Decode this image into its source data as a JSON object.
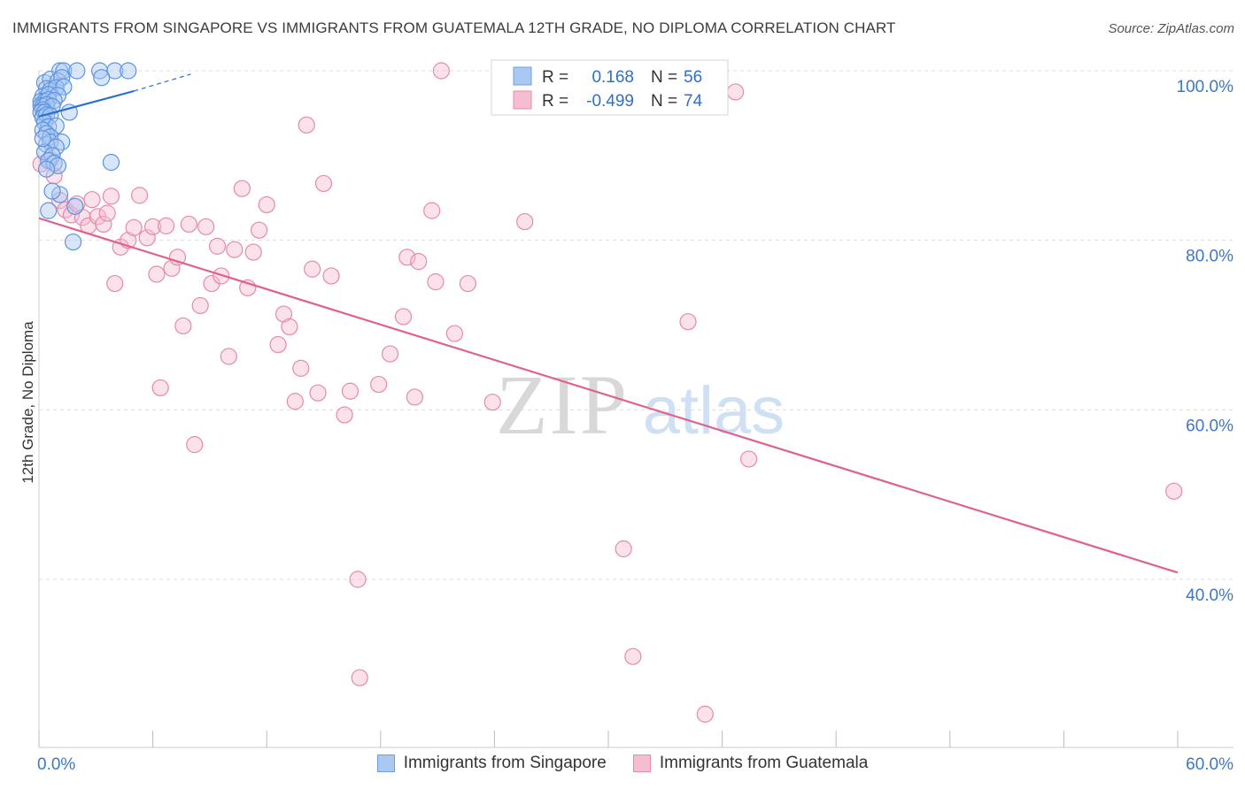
{
  "header": {
    "title": "IMMIGRANTS FROM SINGAPORE VS IMMIGRANTS FROM GUATEMALA 12TH GRADE, NO DIPLOMA CORRELATION CHART",
    "source": "Source: ZipAtlas.com"
  },
  "watermark": {
    "zip": "ZIP",
    "atlas": "atlas"
  },
  "legend_box": {
    "r_label": "R =",
    "n_label": "N =",
    "rows": [
      {
        "r": "0.168",
        "n": "56"
      },
      {
        "r": "-0.499",
        "n": "74"
      }
    ]
  },
  "colors": {
    "blue": "#2a6fd1",
    "blue_fill": "#aac8f2",
    "pink": "#e0608e",
    "pink_fill": "#f6bdd0",
    "tick_text": "#3a78c8",
    "grid": "#dddddd"
  },
  "chart_data": {
    "type": "scatter",
    "title": "IMMIGRANTS FROM SINGAPORE VS IMMIGRANTS FROM GUATEMALA 12TH GRADE, NO DIPLOMA CORRELATION CHART",
    "xlabel": "",
    "ylabel": "12th Grade, No Diploma",
    "xlim": [
      0,
      60
    ],
    "ylim": [
      22,
      101
    ],
    "x_tick_labels": [
      {
        "value": 0,
        "label": "0.0%"
      },
      {
        "value": 60,
        "label": "60.0%"
      }
    ],
    "x_minor_ticks": [
      0,
      6,
      12,
      18,
      24,
      30,
      36,
      42,
      48,
      54,
      60
    ],
    "y_tick_labels": [
      {
        "value": 100,
        "label": "100.0%"
      },
      {
        "value": 80,
        "label": "80.0%"
      },
      {
        "value": 60,
        "label": "60.0%"
      },
      {
        "value": 40,
        "label": "40.0%"
      }
    ],
    "grid": true,
    "series": [
      {
        "name": "Immigrants from Singapore",
        "color": "blue",
        "trend": {
          "x": [
            0,
            5
          ],
          "y": [
            94.6,
            97.6
          ]
        },
        "trend_dashed": {
          "x": [
            5,
            8
          ],
          "y": [
            97.6,
            99.6
          ]
        },
        "points": [
          [
            1.1,
            100
          ],
          [
            1.3,
            100
          ],
          [
            2.0,
            100
          ],
          [
            3.2,
            100
          ],
          [
            4.0,
            100
          ],
          [
            4.7,
            100
          ],
          [
            0.3,
            98.6
          ],
          [
            0.6,
            99.0
          ],
          [
            1.0,
            98.8
          ],
          [
            1.2,
            99.2
          ],
          [
            3.3,
            99.2
          ],
          [
            0.4,
            97.9
          ],
          [
            0.6,
            97.7
          ],
          [
            0.9,
            98.0
          ],
          [
            1.3,
            98.1
          ],
          [
            0.2,
            97.0
          ],
          [
            0.5,
            97.2
          ],
          [
            1.0,
            97.1
          ],
          [
            0.1,
            96.4
          ],
          [
            0.3,
            96.4
          ],
          [
            0.5,
            96.6
          ],
          [
            0.8,
            96.5
          ],
          [
            0.1,
            95.9
          ],
          [
            0.2,
            95.8
          ],
          [
            0.4,
            96.0
          ],
          [
            0.7,
            95.8
          ],
          [
            0.2,
            95.4
          ],
          [
            0.1,
            95.1
          ],
          [
            0.3,
            95.1
          ],
          [
            1.6,
            95.1
          ],
          [
            0.2,
            94.5
          ],
          [
            0.4,
            94.8
          ],
          [
            0.6,
            94.7
          ],
          [
            0.3,
            93.9
          ],
          [
            0.5,
            93.4
          ],
          [
            0.9,
            93.5
          ],
          [
            0.2,
            93.0
          ],
          [
            0.4,
            92.6
          ],
          [
            0.6,
            92.2
          ],
          [
            0.4,
            91.3
          ],
          [
            0.6,
            91.6
          ],
          [
            1.2,
            91.6
          ],
          [
            0.9,
            91.0
          ],
          [
            0.3,
            90.4
          ],
          [
            0.7,
            90.0
          ],
          [
            0.5,
            89.4
          ],
          [
            0.8,
            89.1
          ],
          [
            1.0,
            88.8
          ],
          [
            3.8,
            89.2
          ],
          [
            0.4,
            88.4
          ],
          [
            1.1,
            85.4
          ],
          [
            0.7,
            85.8
          ],
          [
            1.9,
            84.0
          ],
          [
            0.5,
            83.5
          ],
          [
            1.8,
            79.8
          ],
          [
            0.2,
            92.0
          ]
        ]
      },
      {
        "name": "Immigrants from Guatemala",
        "color": "pink",
        "trend": {
          "x": [
            0,
            60
          ],
          "y": [
            82.6,
            40.8
          ]
        },
        "points": [
          [
            0.1,
            89.0
          ],
          [
            0.6,
            89.5
          ],
          [
            0.8,
            87.6
          ],
          [
            1.1,
            84.7
          ],
          [
            1.4,
            83.6
          ],
          [
            1.7,
            83.0
          ],
          [
            2.0,
            84.3
          ],
          [
            2.3,
            82.7
          ],
          [
            2.6,
            81.7
          ],
          [
            2.8,
            84.8
          ],
          [
            3.1,
            82.8
          ],
          [
            3.4,
            81.9
          ],
          [
            3.6,
            83.2
          ],
          [
            3.8,
            85.2
          ],
          [
            4.0,
            74.9
          ],
          [
            4.3,
            79.2
          ],
          [
            4.7,
            80.0
          ],
          [
            5.0,
            81.5
          ],
          [
            5.3,
            85.3
          ],
          [
            5.7,
            80.3
          ],
          [
            6.0,
            81.6
          ],
          [
            6.2,
            76.0
          ],
          [
            6.4,
            62.6
          ],
          [
            6.7,
            81.7
          ],
          [
            7.0,
            76.7
          ],
          [
            7.3,
            78.0
          ],
          [
            7.6,
            69.9
          ],
          [
            7.9,
            81.9
          ],
          [
            8.2,
            55.9
          ],
          [
            8.5,
            72.3
          ],
          [
            8.8,
            81.6
          ],
          [
            9.1,
            74.9
          ],
          [
            9.4,
            79.3
          ],
          [
            9.6,
            75.8
          ],
          [
            10.0,
            66.3
          ],
          [
            10.3,
            78.9
          ],
          [
            10.7,
            86.1
          ],
          [
            11.0,
            74.4
          ],
          [
            11.3,
            78.6
          ],
          [
            11.6,
            81.2
          ],
          [
            12.0,
            84.2
          ],
          [
            12.6,
            67.7
          ],
          [
            12.9,
            71.3
          ],
          [
            13.2,
            69.8
          ],
          [
            13.5,
            61.0
          ],
          [
            13.8,
            64.9
          ],
          [
            14.1,
            93.6
          ],
          [
            14.4,
            76.6
          ],
          [
            14.7,
            62.0
          ],
          [
            15.0,
            86.7
          ],
          [
            15.4,
            75.8
          ],
          [
            16.1,
            59.4
          ],
          [
            16.4,
            62.2
          ],
          [
            16.8,
            40.0
          ],
          [
            16.9,
            28.4
          ],
          [
            17.9,
            63.0
          ],
          [
            18.5,
            66.6
          ],
          [
            19.2,
            71.0
          ],
          [
            19.4,
            78.0
          ],
          [
            19.8,
            61.5
          ],
          [
            20.0,
            77.5
          ],
          [
            20.7,
            83.5
          ],
          [
            20.9,
            75.1
          ],
          [
            21.2,
            100.0
          ],
          [
            21.9,
            69.0
          ],
          [
            22.6,
            74.9
          ],
          [
            23.9,
            60.9
          ],
          [
            25.6,
            82.2
          ],
          [
            30.8,
            43.6
          ],
          [
            31.3,
            30.9
          ],
          [
            34.2,
            70.4
          ],
          [
            35.1,
            24.1
          ],
          [
            36.7,
            97.5
          ],
          [
            37.4,
            54.2
          ],
          [
            59.8,
            50.4
          ]
        ]
      }
    ]
  },
  "bottom_legend": [
    {
      "label": "Immigrants from Singapore"
    },
    {
      "label": "Immigrants from Guatemala"
    }
  ]
}
